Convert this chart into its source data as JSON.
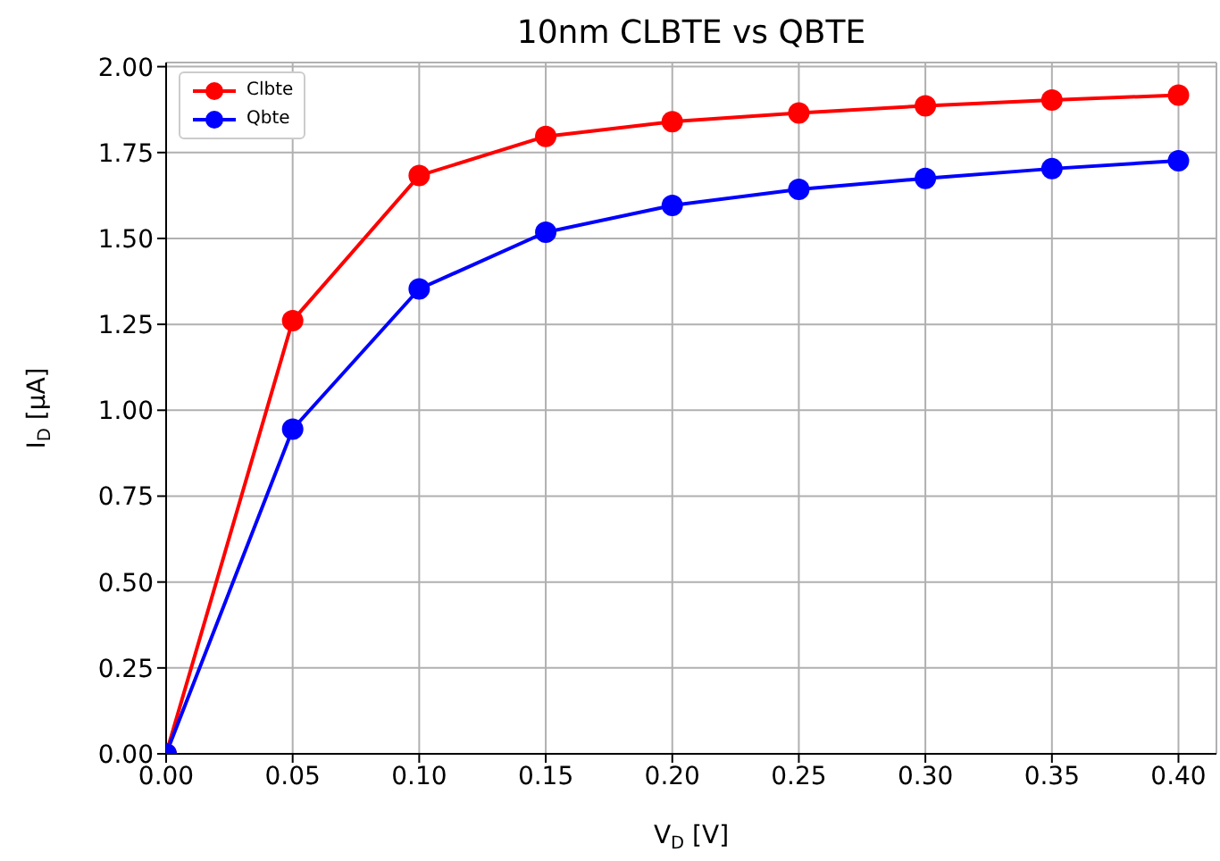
{
  "chart_data": {
    "type": "line",
    "title": "10nm CLBTE vs QBTE",
    "xlabel": "V$_{D}$ [V]",
    "ylabel": "I$_{D}$ [μA]",
    "x": [
      0,
      0.05,
      0.1,
      0.15,
      0.2,
      0.25,
      0.3,
      0.35,
      0.4
    ],
    "series": [
      {
        "name": "Clbte",
        "color": "#ff0000",
        "values": [
          0,
          1.261,
          1.683,
          1.797,
          1.84,
          1.865,
          1.886,
          1.903,
          1.917
        ]
      },
      {
        "name": "Qbte",
        "color": "#0000ff",
        "values": [
          0,
          0.945,
          1.353,
          1.518,
          1.596,
          1.643,
          1.675,
          1.703,
          1.726
        ]
      }
    ],
    "xlim": [
      0,
      0.415
    ],
    "ylim": [
      0,
      2.012
    ],
    "xticks": [
      {
        "value": 0,
        "label": "0.00"
      },
      {
        "value": 0.05,
        "label": "0.05"
      },
      {
        "value": 0.1,
        "label": "0.10"
      },
      {
        "value": 0.15,
        "label": "0.15"
      },
      {
        "value": 0.2,
        "label": "0.20"
      },
      {
        "value": 0.25,
        "label": "0.25"
      },
      {
        "value": 0.3,
        "label": "0.30"
      },
      {
        "value": 0.35,
        "label": "0.35"
      },
      {
        "value": 0.4,
        "label": "0.40"
      }
    ],
    "yticks": [
      {
        "value": 0,
        "label": "0.00"
      },
      {
        "value": 0.25,
        "label": "0.25"
      },
      {
        "value": 0.5,
        "label": "0.50"
      },
      {
        "value": 0.75,
        "label": "0.75"
      },
      {
        "value": 1,
        "label": "1.00"
      },
      {
        "value": 1.25,
        "label": "1.25"
      },
      {
        "value": 1.5,
        "label": "1.50"
      },
      {
        "value": 1.75,
        "label": "1.75"
      },
      {
        "value": 2,
        "label": "2.00"
      }
    ],
    "grid": true,
    "legend": "top left",
    "marker": "circle",
    "line_style": "solid"
  }
}
